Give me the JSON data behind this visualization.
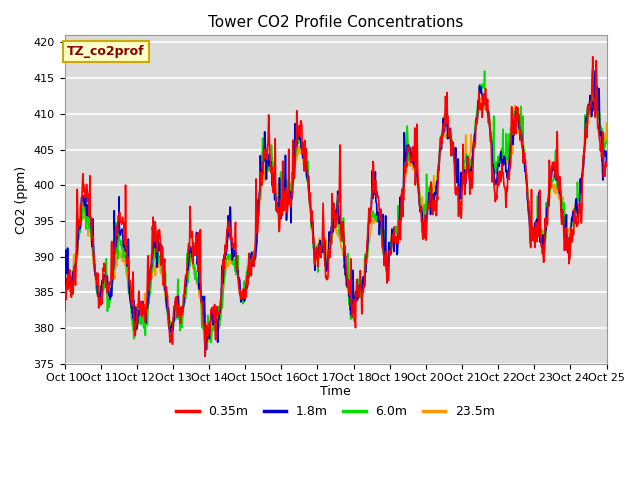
{
  "title": "Tower CO2 Profile Concentrations",
  "ylabel": "CO2 (ppm)",
  "xlabel": "Time",
  "legend_label": "TZ_co2prof",
  "ylim": [
    375,
    421
  ],
  "yticks": [
    375,
    380,
    385,
    390,
    395,
    400,
    405,
    410,
    415,
    420
  ],
  "x_tick_labels": [
    "Oct 10",
    "Oct 11",
    "Oct 12",
    "Oct 13",
    "Oct 14",
    "Oct 15",
    "Oct 16",
    "Oct 17",
    "Oct 18",
    "Oct 19",
    "Oct 20",
    "Oct 21",
    "Oct 22",
    "Oct 23",
    "Oct 24",
    "Oct 25"
  ],
  "series_labels": [
    "0.35m",
    "1.8m",
    "6.0m",
    "23.5m"
  ],
  "series_colors": [
    "#ff0000",
    "#0000cc",
    "#00dd00",
    "#ff9900"
  ],
  "background_color": "#dcdcdc",
  "n_points": 2160,
  "seed": 7
}
